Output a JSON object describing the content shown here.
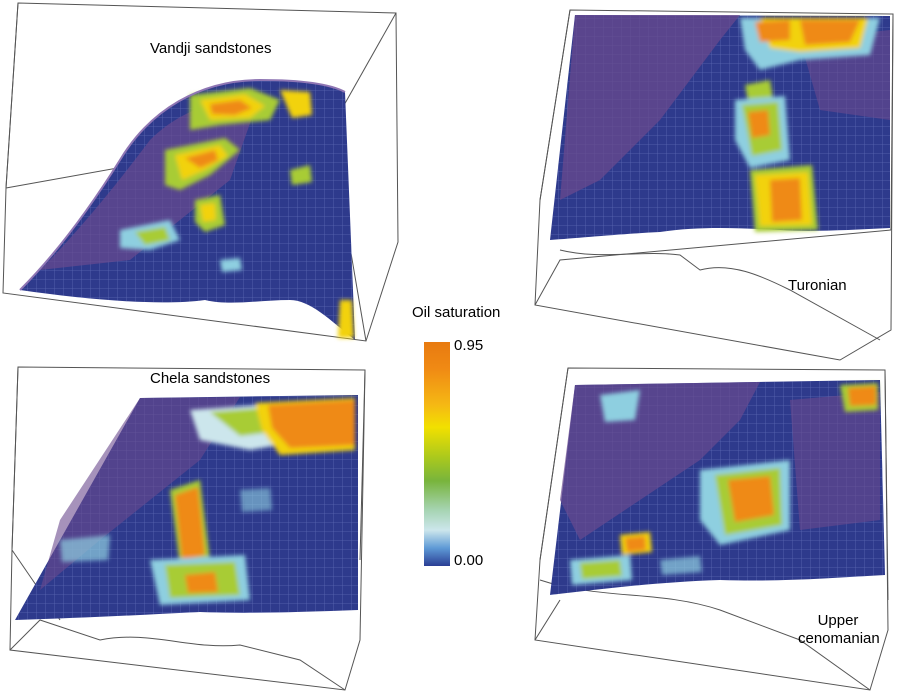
{
  "panels": [
    {
      "id": "vandji",
      "label": "Vandji sandstones"
    },
    {
      "id": "turonian",
      "label": "Turonian"
    },
    {
      "id": "chela",
      "label": "Chela sandstones"
    },
    {
      "id": "upper",
      "label_lines": [
        "Upper",
        "cenomanian"
      ]
    }
  ],
  "colorbar": {
    "title": "Oil saturation",
    "max_label": "0.95",
    "min_label": "0.00",
    "colors": [
      "#e87a10",
      "#f5b814",
      "#f2e000",
      "#78b43c",
      "#cce6ec",
      "#2a3e94"
    ]
  },
  "colors": {
    "surface": "#2e3a8c",
    "purple": "#6a4a8e",
    "cyan": "#8ecfe0",
    "green": "#a8cc36",
    "yellow": "#f2d20a",
    "orange": "#ef8a14",
    "frame": "#555555"
  }
}
